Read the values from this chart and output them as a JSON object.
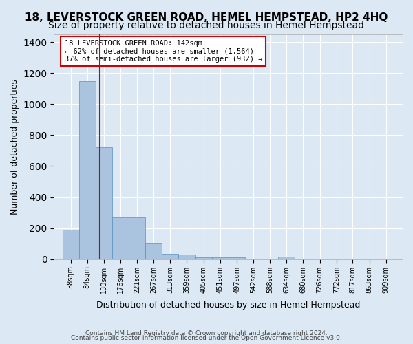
{
  "title1": "18, LEVERSTOCK GREEN ROAD, HEMEL HEMPSTEAD, HP2 4HQ",
  "title2": "Size of property relative to detached houses in Hemel Hempstead",
  "xlabel": "Distribution of detached houses by size in Hemel Hempstead",
  "ylabel": "Number of detached properties",
  "footer1": "Contains HM Land Registry data © Crown copyright and database right 2024.",
  "footer2": "Contains public sector information licensed under the Open Government Licence v3.0.",
  "bar_edges": [
    38,
    84,
    130,
    176,
    221,
    267,
    313,
    359,
    405,
    451,
    497,
    542,
    588,
    634,
    680,
    726,
    772,
    817,
    863,
    909,
    955
  ],
  "bar_heights": [
    190,
    1150,
    720,
    270,
    270,
    105,
    35,
    28,
    14,
    13,
    14,
    0,
    0,
    18,
    0,
    0,
    0,
    0,
    0,
    0
  ],
  "bar_color": "#aac4e0",
  "bar_edge_color": "#5a8fc0",
  "vline_x": 142,
  "vline_color": "#cc0000",
  "annotation_text": "18 LEVERSTOCK GREEN ROAD: 142sqm\n← 62% of detached houses are smaller (1,564)\n37% of semi-detached houses are larger (932) →",
  "annotation_box_color": "#ffffff",
  "annotation_box_edge": "#cc0000",
  "ylim": [
    0,
    1450
  ],
  "yticks": [
    0,
    200,
    400,
    600,
    800,
    1000,
    1200,
    1400
  ],
  "background_color": "#dce9f5",
  "plot_bg_color": "#dce9f5",
  "grid_color": "#ffffff",
  "title1_fontsize": 11,
  "title2_fontsize": 10,
  "tick_labels": [
    "38sqm",
    "84sqm",
    "130sqm",
    "176sqm",
    "221sqm",
    "267sqm",
    "313sqm",
    "359sqm",
    "405sqm",
    "451sqm",
    "497sqm",
    "542sqm",
    "588sqm",
    "634sqm",
    "680sqm",
    "726sqm",
    "772sqm",
    "817sqm",
    "863sqm",
    "909sqm"
  ]
}
